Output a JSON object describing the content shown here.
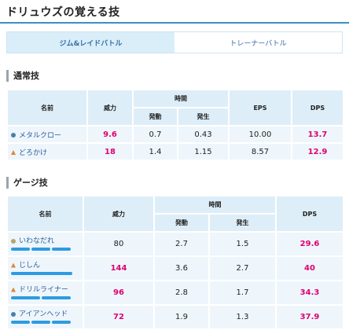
{
  "header": {
    "title": "ドリュウズの覚える技"
  },
  "tabs": [
    "ジム&レイドバトル",
    "トレーナーバトル"
  ],
  "fast": {
    "title": "通常技",
    "headers": {
      "name": "名前",
      "power": "威力",
      "time": "時間",
      "cast": "発動",
      "occur": "発生",
      "eps": "EPS",
      "dps": "DPS"
    },
    "rows": [
      [
        "メタルクロー",
        "9.6",
        "0.7",
        "0.43",
        "10.00",
        "13.7"
      ],
      [
        "どろかけ",
        "18",
        "1.4",
        "1.15",
        "8.57",
        "12.9"
      ]
    ]
  },
  "charged": {
    "title": "ゲージ技",
    "headers": {
      "name": "名前",
      "power": "威力",
      "time": "時間",
      "cast": "発動",
      "occur": "発生",
      "dps": "DPS"
    },
    "rows": [
      [
        "いわなだれ",
        "80",
        "2.7",
        "1.5",
        "29.6"
      ],
      [
        "じしん",
        "144",
        "3.6",
        "2.7",
        "40"
      ],
      [
        "ドリルライナー",
        "96",
        "2.8",
        "1.7",
        "34.3"
      ],
      [
        "アイアンヘッド",
        "72",
        "1.9",
        "1.3",
        "37.9"
      ]
    ]
  }
}
